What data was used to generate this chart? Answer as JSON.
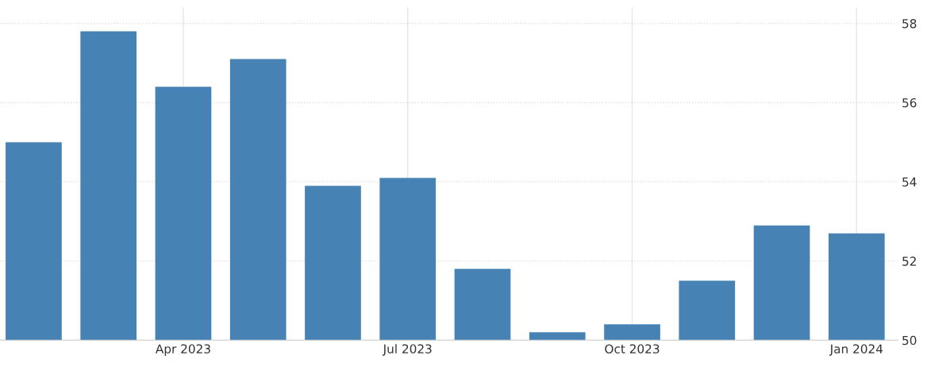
{
  "chart_data": {
    "type": "bar",
    "categories": [
      null,
      null,
      "Apr 2023",
      null,
      null,
      "Jul 2023",
      null,
      null,
      "Oct 2023",
      null,
      null,
      "Jan 2024"
    ],
    "values": [
      55.0,
      57.8,
      56.4,
      57.1,
      53.9,
      54.1,
      51.8,
      50.2,
      50.4,
      51.5,
      52.9,
      52.7
    ],
    "color": "#4682b4",
    "ylim": [
      50,
      58.4
    ],
    "yticks": [
      50,
      52,
      54,
      56,
      58
    ],
    "grid": true
  }
}
